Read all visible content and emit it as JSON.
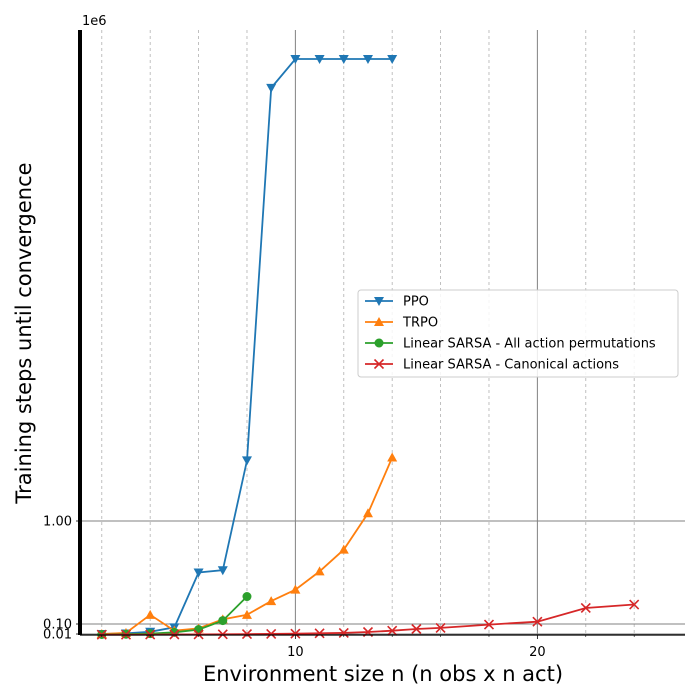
{
  "chart_data": {
    "type": "line",
    "title": "",
    "xlabel": "Environment size n (n obs x n act)",
    "ylabel": "Training steps until convergence",
    "y_offset_text": "1e6",
    "xlim": [
      1.1,
      26.1
    ],
    "ylim": [
      0.0,
      6.1
    ],
    "x_scale": "linear",
    "y_scale": "piecewise-linear",
    "x_ticks": [
      10,
      20
    ],
    "x_tick_labels": [
      "10",
      "20"
    ],
    "x_minor_ticks": [
      2,
      4,
      6,
      8,
      12,
      14,
      16,
      18,
      22,
      24
    ],
    "y_ticks": [
      0.01,
      0.1,
      1.0
    ],
    "y_tick_labels": [
      "0.01",
      "0.10",
      "1.00"
    ],
    "grid": true,
    "legend_position": "center-right",
    "series": [
      {
        "name": "PPO",
        "color": "#1f77b4",
        "marker": "triangle-down",
        "x": [
          2,
          3,
          4,
          5,
          6,
          7,
          8,
          9,
          10,
          11,
          12,
          13,
          14
        ],
        "y": [
          0.01,
          0.015,
          0.03,
          0.07,
          0.55,
          0.57,
          1.63,
          5.5,
          5.8,
          5.8,
          5.8,
          5.8,
          5.8
        ]
      },
      {
        "name": "TRPO",
        "color": "#ff7f0e",
        "marker": "triangle-up",
        "x": [
          2,
          3,
          4,
          5,
          6,
          7,
          8,
          9,
          10,
          11,
          12,
          13,
          14
        ],
        "y": [
          0.01,
          0.02,
          0.18,
          0.04,
          0.06,
          0.14,
          0.18,
          0.3,
          0.4,
          0.56,
          0.75,
          1.08,
          1.66
        ]
      },
      {
        "name": "Linear SARSA - All action permutations",
        "color": "#2ca02c",
        "marker": "circle",
        "x": [
          2,
          3,
          4,
          5,
          6,
          7,
          8
        ],
        "y": [
          0.005,
          0.008,
          0.013,
          0.025,
          0.05,
          0.13,
          0.34
        ]
      },
      {
        "name": "Linear SARSA - Canonical actions",
        "color": "#d62728",
        "marker": "x",
        "x": [
          2,
          3,
          4,
          5,
          6,
          7,
          8,
          9,
          10,
          11,
          12,
          13,
          14,
          15,
          16,
          18,
          20,
          22,
          24
        ],
        "y": [
          0.003,
          0.003,
          0.004,
          0.005,
          0.006,
          0.007,
          0.009,
          0.011,
          0.013,
          0.016,
          0.02,
          0.028,
          0.04,
          0.055,
          0.065,
          0.095,
          0.12,
          0.24,
          0.27
        ]
      }
    ]
  }
}
